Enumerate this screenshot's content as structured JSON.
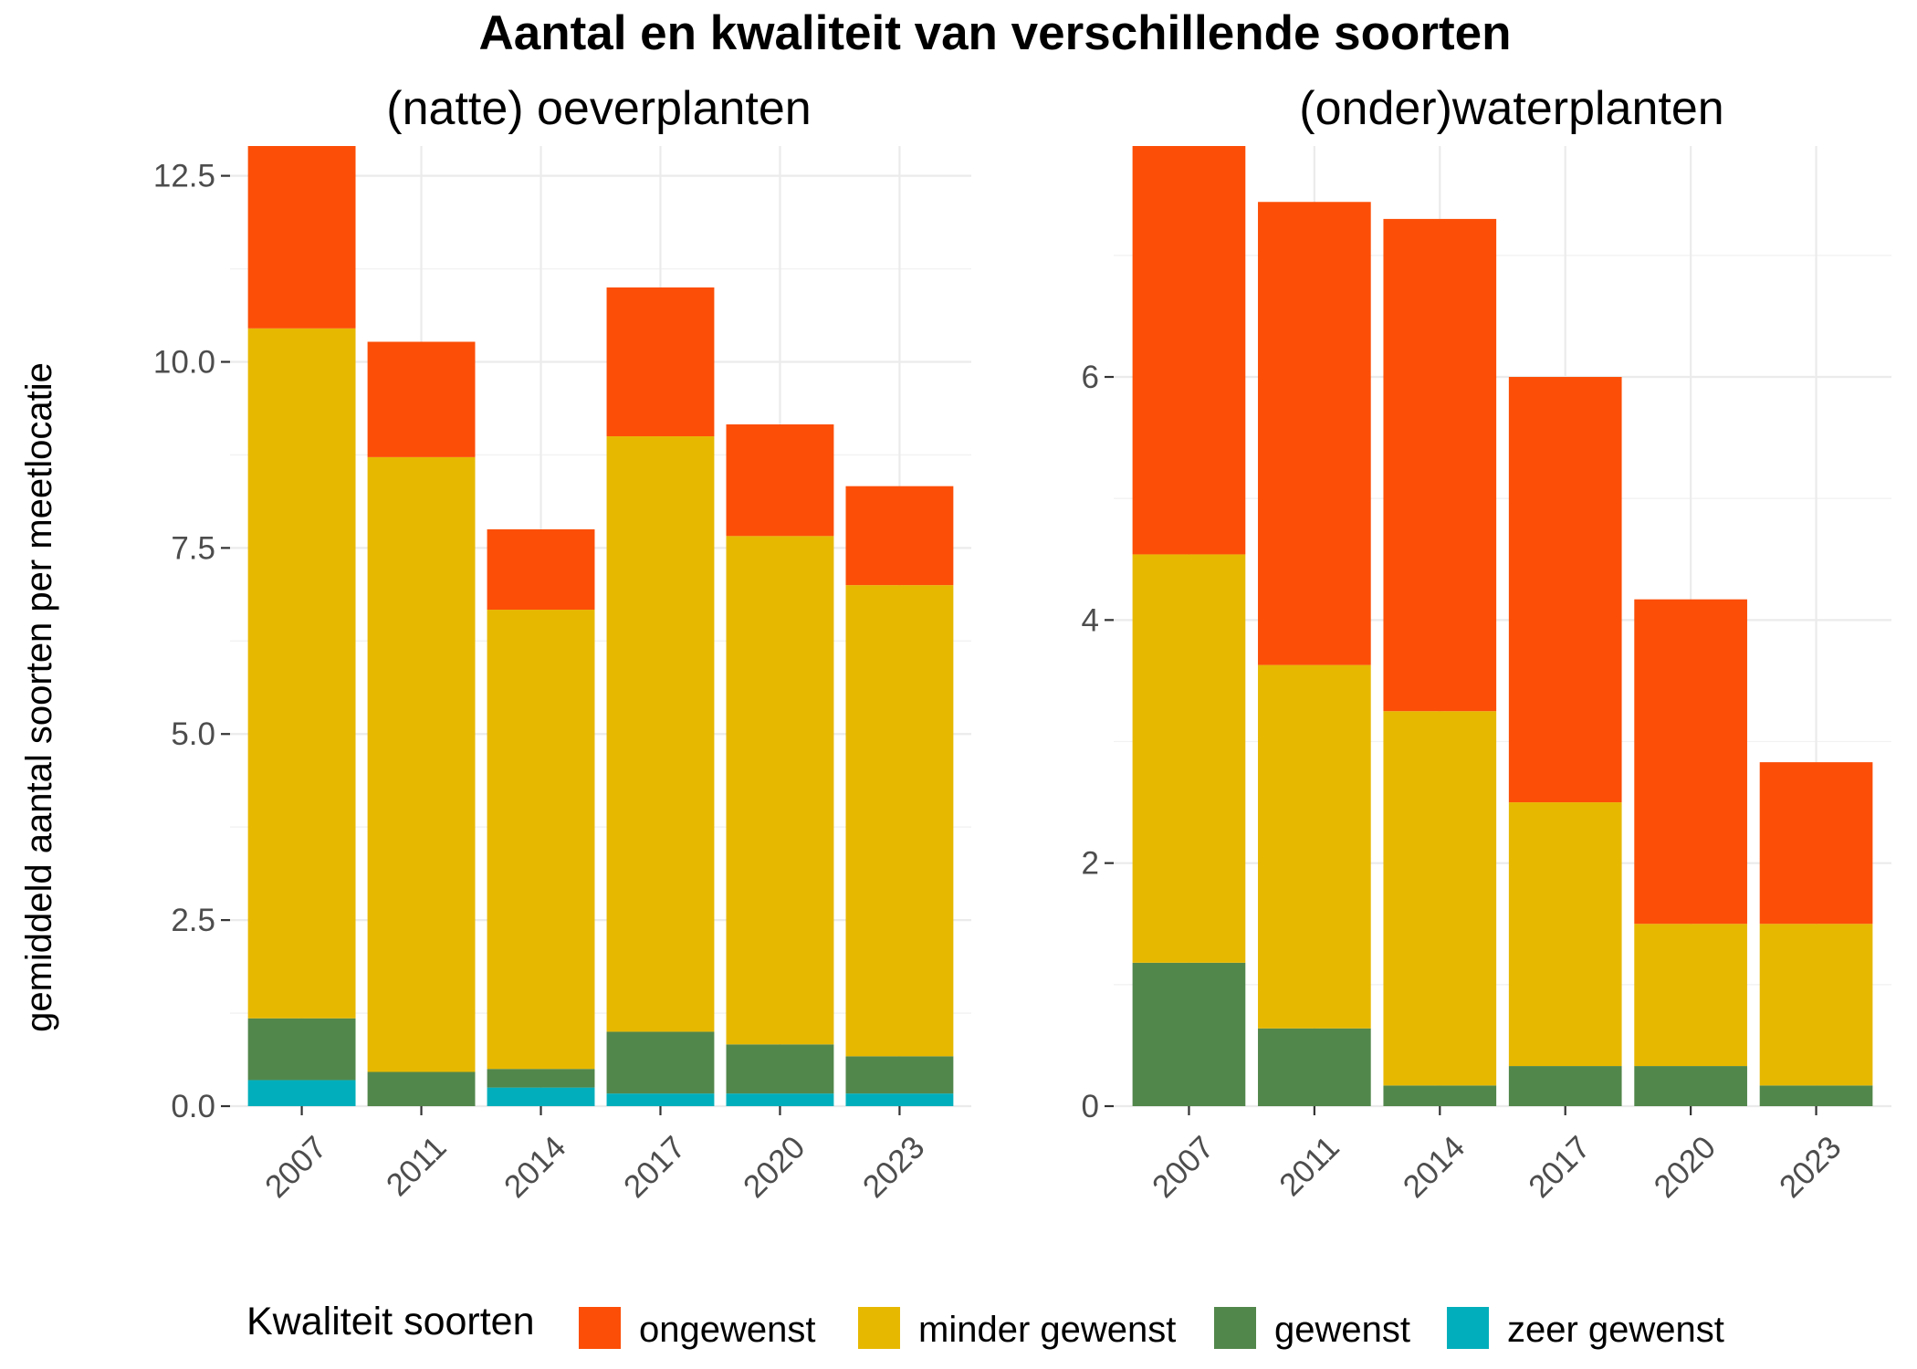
{
  "title": "Aantal en kwaliteit van verschillende soorten",
  "ylabel": "gemiddeld aantal soorten per meetlocatie",
  "legend": {
    "title": "Kwaliteit soorten",
    "items": [
      {
        "label": "ongewenst",
        "color": "#FC4E07"
      },
      {
        "label": "minder gewenst",
        "color": "#E7B800"
      },
      {
        "label": "gewenst",
        "color": "#52874B"
      },
      {
        "label": "zeer gewenst",
        "color": "#00AFBB"
      }
    ]
  },
  "chart_data": [
    {
      "type": "bar",
      "stacked": true,
      "title": "(natte) oeverplanten",
      "categories": [
        "2007",
        "2011",
        "2014",
        "2017",
        "2020",
        "2023"
      ],
      "ylim": [
        0,
        12.9
      ],
      "yticks": [
        "0.0",
        "2.5",
        "5.0",
        "7.5",
        "10.0",
        "12.5"
      ],
      "grid": true,
      "series": [
        {
          "name": "zeer gewenst",
          "values": [
            0.35,
            0.0,
            0.25,
            0.17,
            0.17,
            0.17
          ]
        },
        {
          "name": "gewenst",
          "values": [
            0.83,
            0.46,
            0.25,
            0.83,
            0.66,
            0.5
          ]
        },
        {
          "name": "minder gewenst",
          "values": [
            9.27,
            8.26,
            6.17,
            8.0,
            6.83,
            6.33
          ]
        },
        {
          "name": "ongewenst",
          "values": [
            2.45,
            1.55,
            1.08,
            2.0,
            1.5,
            1.33
          ]
        }
      ]
    },
    {
      "type": "bar",
      "stacked": true,
      "title": "(onder)waterplanten",
      "categories": [
        "2007",
        "2011",
        "2014",
        "2017",
        "2020",
        "2023"
      ],
      "ylim": [
        0,
        7.9
      ],
      "yticks": [
        "0",
        "2",
        "4",
        "6"
      ],
      "grid": true,
      "series": [
        {
          "name": "zeer gewenst",
          "values": [
            0,
            0,
            0,
            0,
            0,
            0
          ]
        },
        {
          "name": "gewenst",
          "values": [
            1.18,
            0.64,
            0.17,
            0.33,
            0.33,
            0.17
          ]
        },
        {
          "name": "minder gewenst",
          "values": [
            3.36,
            2.99,
            3.08,
            2.17,
            1.17,
            1.33
          ]
        },
        {
          "name": "ongewenst",
          "values": [
            3.36,
            3.81,
            4.05,
            3.5,
            2.67,
            1.33
          ]
        }
      ]
    }
  ]
}
